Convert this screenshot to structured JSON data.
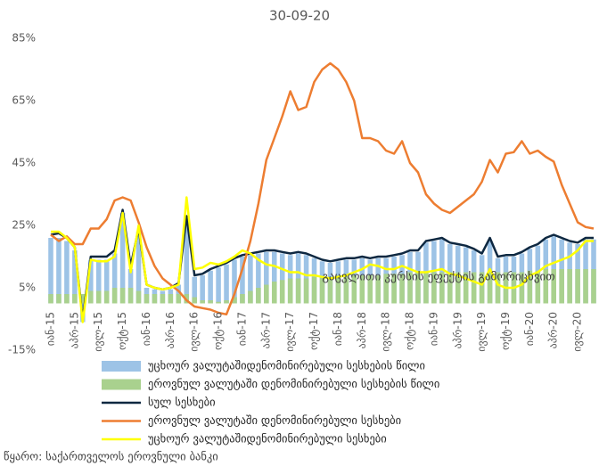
{
  "chart_data": {
    "type": "bar_line",
    "title": "30-09-20",
    "categories": [
      "იან-15",
      null,
      null,
      "აპრ-15",
      null,
      null,
      "ივლ-15",
      null,
      null,
      "ოქტ-15",
      null,
      null,
      "იან-16",
      null,
      null,
      "აპრ-16",
      null,
      null,
      "ივლ-16",
      null,
      null,
      "ოქტ-16",
      null,
      null,
      "იან-17",
      null,
      null,
      "აპრ-17",
      null,
      null,
      "ივლ-17",
      null,
      null,
      "ოქტ-17",
      null,
      null,
      "იან-18",
      null,
      null,
      "აპრ-18",
      null,
      null,
      "ივლ-18",
      null,
      null,
      "ოქტ-18",
      null,
      null,
      "იან-19",
      null,
      null,
      "აპრ-19",
      null,
      null,
      "ივლ-19",
      null,
      null,
      "ოქტ-19",
      null,
      null,
      "იან-20",
      null,
      null,
      "აპრ-20",
      null,
      null,
      "ივლ-20",
      null,
      null
    ],
    "series": [
      {
        "name": "უცხოურ ვალუტაშიდენომინირებული სესხების წილი",
        "kind": "bar",
        "color": "#9dc3e6",
        "values": [
          21,
          21,
          20,
          17,
          -6,
          14,
          14,
          14,
          16,
          29,
          11,
          23,
          5,
          4.5,
          4,
          4.5,
          6,
          27,
          8.5,
          9,
          10.5,
          11.5,
          12.5,
          14,
          15,
          15.5,
          16,
          16.5,
          16.5,
          16,
          15.5,
          16,
          15.5,
          14.5,
          13.5,
          13,
          13.5,
          14,
          14,
          14.5,
          14,
          14.5,
          14.5,
          15,
          15.5,
          16.5,
          16.5,
          19.5,
          20,
          20.5,
          19,
          18.5,
          18,
          17,
          15.5,
          20,
          14.5,
          15,
          15,
          16,
          17.5,
          18.5,
          20.5,
          21.5,
          20.5,
          19.5,
          19,
          20.5,
          20.5
        ]
      },
      {
        "name": "ეროვნულ ვალუტაში დენომინირებული სესხების წილი",
        "kind": "bar",
        "color": "#a9d18e",
        "values": [
          3,
          3,
          3,
          3,
          3,
          4,
          4,
          4,
          5,
          5,
          5,
          4,
          3,
          3,
          3,
          3,
          3,
          3,
          2,
          1,
          1,
          0.5,
          1,
          2,
          3,
          4,
          5,
          6,
          7,
          7.5,
          8,
          8,
          8,
          8.5,
          8.5,
          8.5,
          9,
          9,
          9,
          9,
          9,
          9,
          9.5,
          9.5,
          9.5,
          10,
          10,
          10,
          10,
          10,
          10,
          10,
          10,
          10,
          10,
          10,
          10,
          10,
          10,
          10,
          10.5,
          10.5,
          11,
          11,
          11,
          11,
          11,
          11,
          11
        ]
      },
      {
        "name": "სულ სესხები",
        "kind": "line",
        "color": "#0e2841",
        "values": [
          22,
          22.5,
          21,
          18,
          -5,
          15,
          15,
          15,
          17,
          30,
          12,
          24,
          6,
          5,
          4.5,
          5,
          6.5,
          28,
          9,
          9.5,
          11,
          12,
          13,
          14.5,
          15.5,
          16,
          16.5,
          17,
          17,
          16.5,
          16,
          16.5,
          16,
          15,
          14,
          13.5,
          14,
          14.5,
          14.5,
          15,
          14.5,
          15,
          15,
          15.5,
          16,
          17,
          17,
          20,
          20.5,
          21,
          19.5,
          19,
          18.5,
          17.5,
          16,
          21,
          15,
          15.5,
          15.5,
          16.5,
          18,
          19,
          21,
          22,
          21,
          20,
          19.5,
          21,
          21
        ]
      },
      {
        "name": "ეროვნულ ვალუტაში დენომინირებული სესხები",
        "kind": "line",
        "color": "#ed7d31",
        "values": [
          22,
          20,
          21.5,
          19,
          19,
          24,
          24,
          27,
          33,
          34,
          33,
          26,
          18,
          12,
          8,
          6,
          4,
          1,
          -1,
          -1.5,
          -2,
          -3,
          -3.5,
          3,
          11,
          20,
          32,
          46,
          53,
          60,
          68,
          62,
          63,
          71,
          75,
          77,
          75,
          71,
          65,
          53,
          53,
          52,
          49,
          48,
          52,
          45,
          42,
          35,
          32,
          30,
          29,
          31,
          33,
          35,
          39,
          46,
          42,
          48,
          48.5,
          52,
          48,
          49,
          47,
          45.5,
          38,
          32,
          26,
          24.5,
          24
        ]
      },
      {
        "name": "უცხოურ ვალუტაშიდენომინირებული სესხები",
        "kind": "line",
        "color": "#ffff00",
        "values": [
          23,
          23,
          21,
          18,
          -6,
          14,
          13.5,
          13.5,
          15,
          29,
          10,
          25,
          6,
          5,
          4.5,
          5,
          6,
          34,
          11,
          11.5,
          13,
          12.5,
          13.5,
          15,
          17,
          16,
          14,
          12.5,
          12,
          11,
          10,
          10,
          9,
          9,
          8.5,
          8,
          8.5,
          9,
          10,
          11,
          12.5,
          12,
          11,
          11,
          12,
          11,
          10,
          10,
          10.5,
          11,
          9.5,
          9,
          8,
          7,
          6,
          11,
          6,
          5,
          5,
          6,
          9,
          10,
          12,
          13,
          14,
          15,
          17,
          20,
          20
        ]
      }
    ],
    "ylim": [
      -15,
      85
    ],
    "yticks": [
      {
        "value": -15,
        "label": "-15%"
      },
      {
        "value": 5,
        "label": "5%"
      },
      {
        "value": 25,
        "label": "25%"
      },
      {
        "value": 45,
        "label": "45%"
      },
      {
        "value": 65,
        "label": "65%"
      },
      {
        "value": 85,
        "label": "85%"
      }
    ],
    "annotation": "გაცვლითი კურსის ეფექტის გამორიცხვით"
  },
  "source": "წყარო: საქართველოს ეროვნული ბანკი"
}
